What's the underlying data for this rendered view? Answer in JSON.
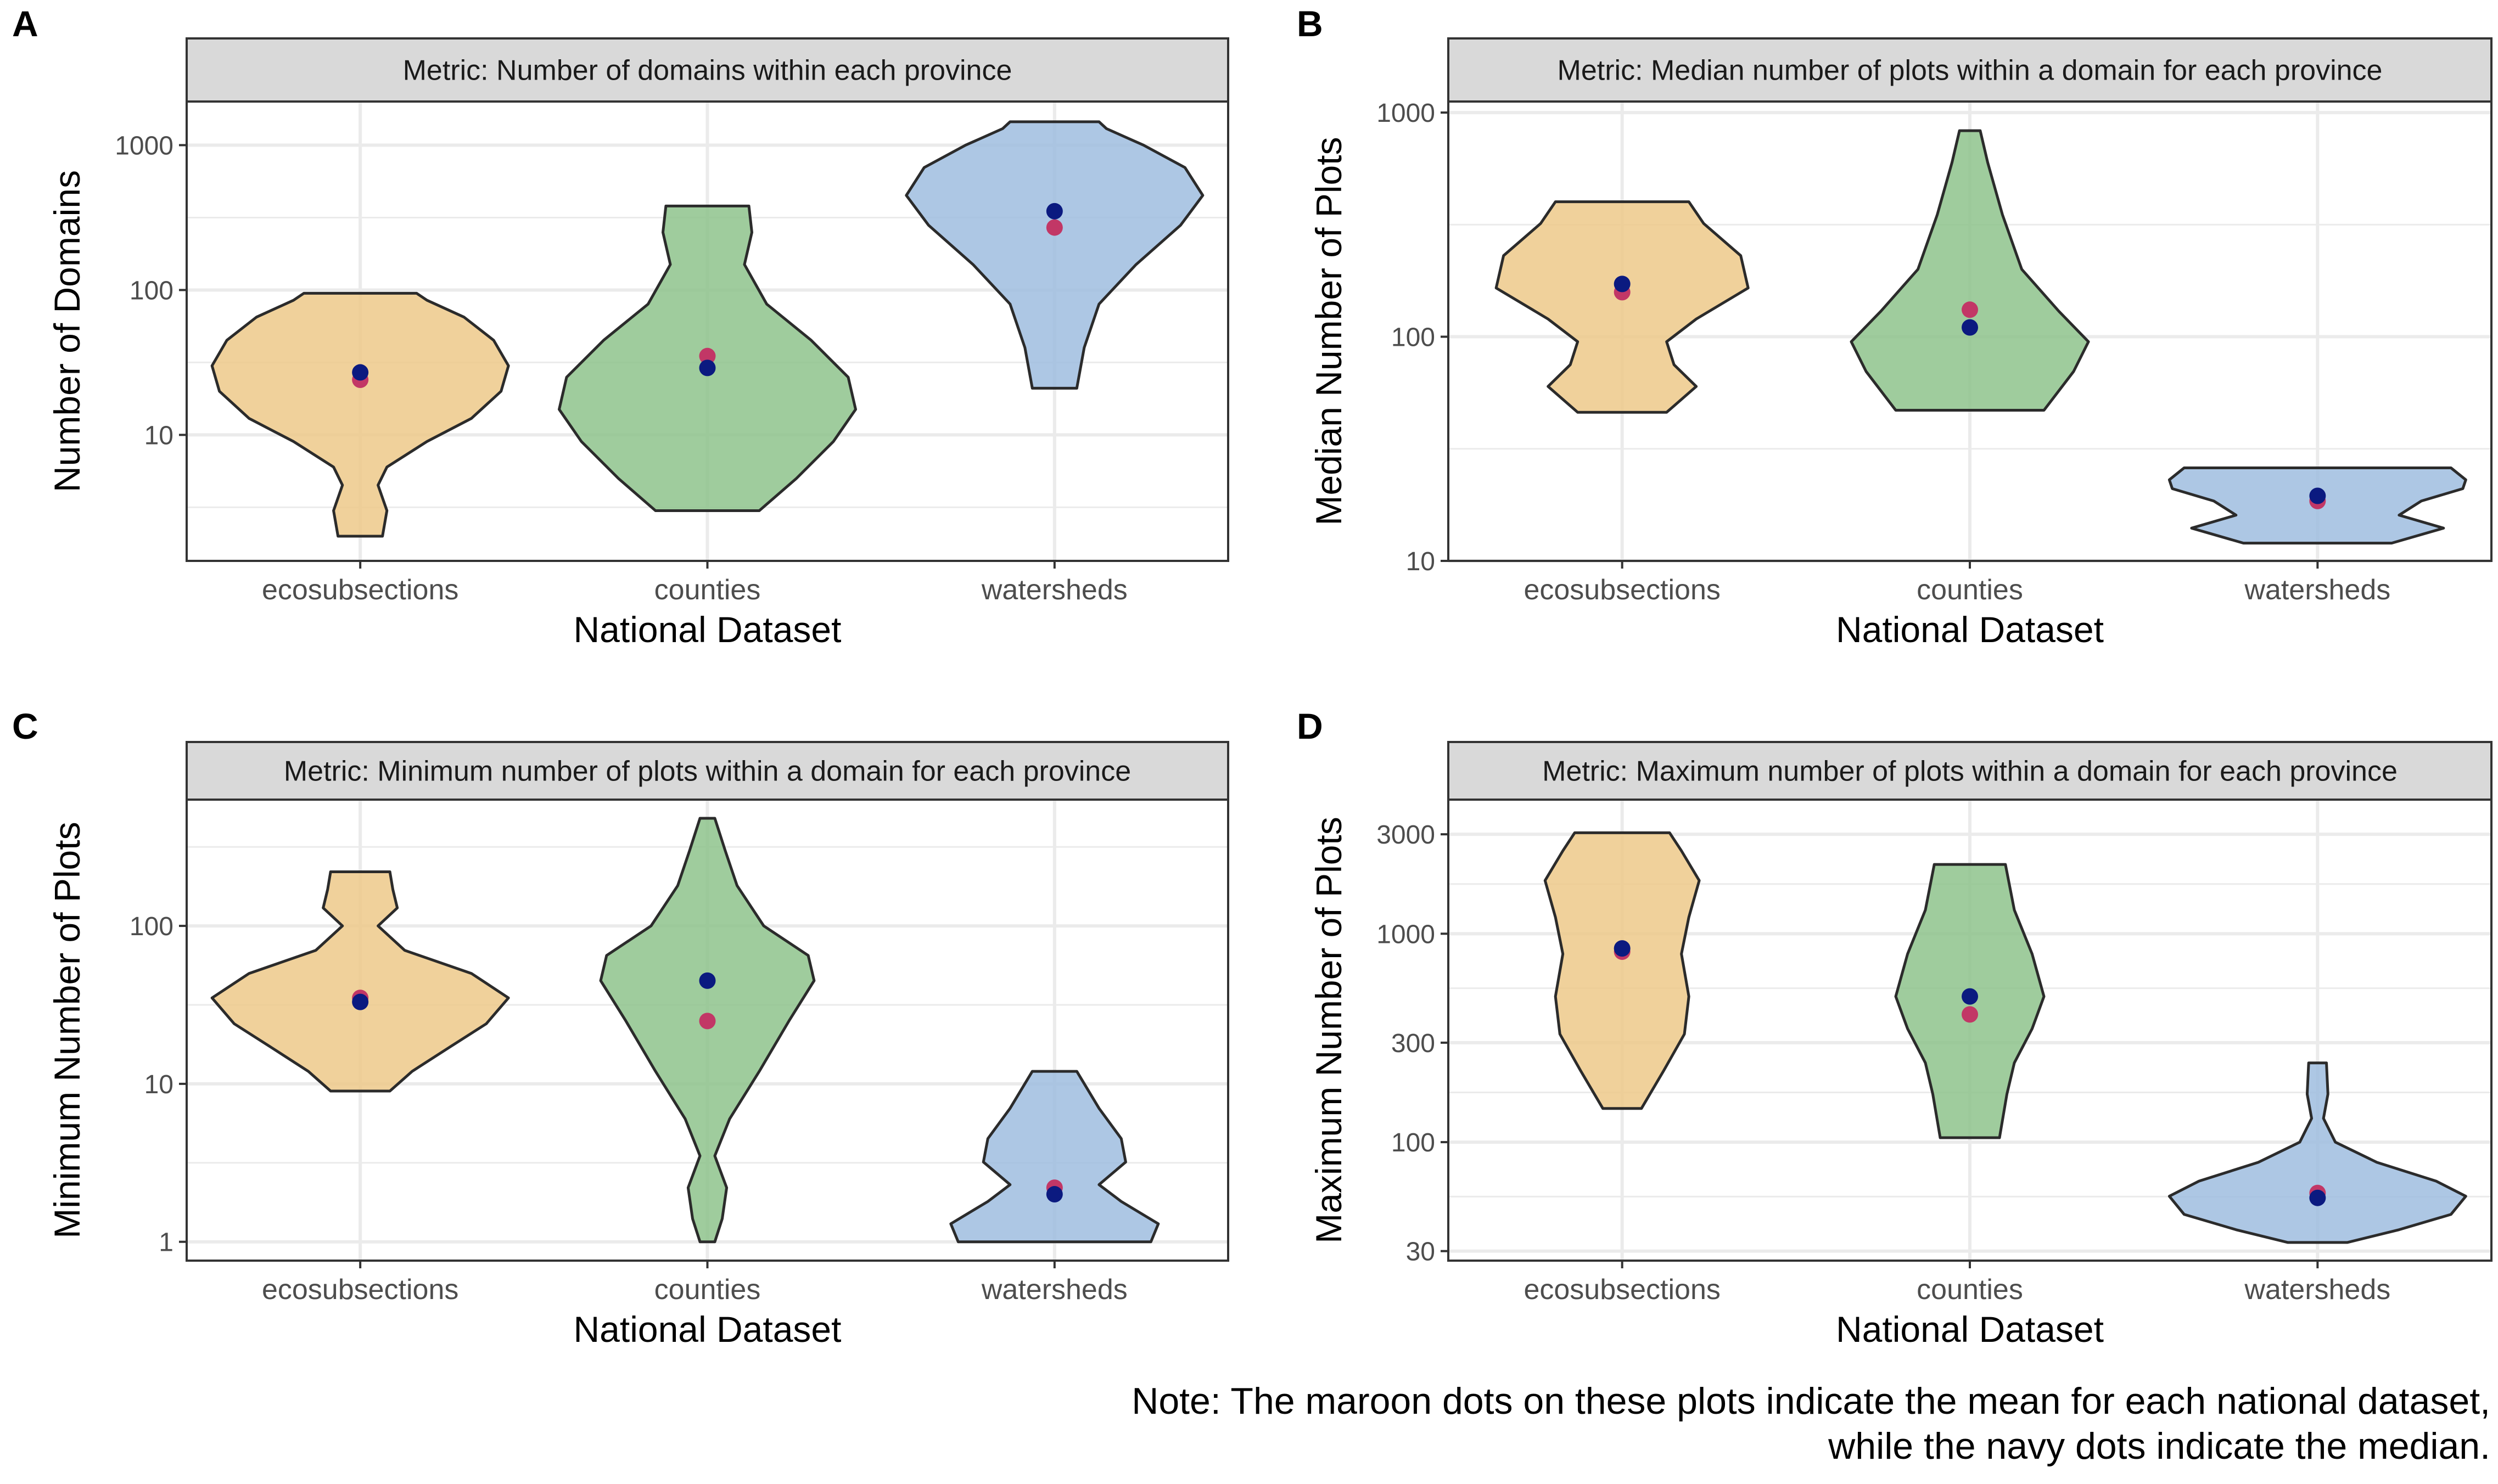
{
  "figure": {
    "note_line1": "Note: The maroon dots on these plots indicate the mean for each national dataset,",
    "note_line2": "while the navy dots indicate the median.",
    "colors": {
      "ecosubsections": "#EDC98A",
      "counties": "#8EC38C",
      "watersheds": "#9FBDDF",
      "mean_dot": "#C23766",
      "median_dot": "#0B1A80",
      "strip_bg": "#D9D9D9",
      "grid": "#EBEBEB"
    }
  },
  "chart_data": [
    {
      "type": "violin",
      "panel_letter": "A",
      "strip_title": "Metric: Number of domains within each province",
      "xlabel": "National Dataset",
      "ylabel": "Number of Domains",
      "yscale": "log10",
      "ylim": [
        1.35,
        2000
      ],
      "yticks": [
        10,
        100,
        1000
      ],
      "ytick_labels": [
        "10",
        "100",
        "1000"
      ],
      "categories": [
        "ecosubsections",
        "counties",
        "watersheds"
      ],
      "series": [
        {
          "name": "ecosubsections",
          "min": 2,
          "max": 95,
          "mean": 24,
          "median": 27,
          "profile": [
            [
              2,
              0.15
            ],
            [
              3,
              0.18
            ],
            [
              4.5,
              0.12
            ],
            [
              6,
              0.18
            ],
            [
              9,
              0.45
            ],
            [
              13,
              0.75
            ],
            [
              20,
              0.95
            ],
            [
              30,
              1.0
            ],
            [
              45,
              0.9
            ],
            [
              65,
              0.7
            ],
            [
              85,
              0.45
            ],
            [
              95,
              0.38
            ]
          ]
        },
        {
          "name": "counties",
          "min": 3,
          "max": 380,
          "mean": 35,
          "median": 29,
          "profile": [
            [
              3,
              0.35
            ],
            [
              5,
              0.6
            ],
            [
              9,
              0.85
            ],
            [
              15,
              1.0
            ],
            [
              25,
              0.95
            ],
            [
              45,
              0.7
            ],
            [
              80,
              0.4
            ],
            [
              150,
              0.25
            ],
            [
              250,
              0.3
            ],
            [
              380,
              0.28
            ]
          ]
        },
        {
          "name": "watersheds",
          "min": 21,
          "max": 1450,
          "mean": 270,
          "median": 350,
          "profile": [
            [
              21,
              0.15
            ],
            [
              40,
              0.2
            ],
            [
              80,
              0.3
            ],
            [
              150,
              0.55
            ],
            [
              280,
              0.85
            ],
            [
              450,
              1.0
            ],
            [
              700,
              0.88
            ],
            [
              1000,
              0.6
            ],
            [
              1300,
              0.35
            ],
            [
              1450,
              0.3
            ]
          ]
        }
      ]
    },
    {
      "type": "violin",
      "panel_letter": "B",
      "strip_title": "Metric: Median number of plots within a domain for each province",
      "xlabel": "National Dataset",
      "ylabel": "Median Number of Plots",
      "yscale": "log10",
      "ylim": [
        10,
        1120
      ],
      "yticks": [
        10,
        100,
        1000
      ],
      "ytick_labels": [
        "10",
        "100",
        "1000"
      ],
      "categories": [
        "ecosubsections",
        "counties",
        "watersheds"
      ],
      "series": [
        {
          "name": "ecosubsections",
          "min": 46,
          "max": 400,
          "mean": 158,
          "median": 172,
          "profile": [
            [
              46,
              0.3
            ],
            [
              60,
              0.5
            ],
            [
              75,
              0.35
            ],
            [
              95,
              0.3
            ],
            [
              120,
              0.5
            ],
            [
              165,
              0.85
            ],
            [
              230,
              0.8
            ],
            [
              320,
              0.55
            ],
            [
              400,
              0.45
            ]
          ]
        },
        {
          "name": "counties",
          "min": 47,
          "max": 830,
          "mean": 132,
          "median": 110,
          "profile": [
            [
              47,
              0.5
            ],
            [
              70,
              0.7
            ],
            [
              95,
              0.8
            ],
            [
              130,
              0.6
            ],
            [
              200,
              0.35
            ],
            [
              350,
              0.22
            ],
            [
              600,
              0.12
            ],
            [
              830,
              0.07
            ]
          ]
        },
        {
          "name": "watersheds",
          "min": 12,
          "max": 26,
          "mean": 18.5,
          "median": 19.5,
          "profile": [
            [
              12,
              0.5
            ],
            [
              14,
              0.85
            ],
            [
              16,
              0.55
            ],
            [
              18.5,
              0.7
            ],
            [
              21,
              0.98
            ],
            [
              23,
              1.0
            ],
            [
              26,
              0.9
            ]
          ]
        }
      ]
    },
    {
      "type": "violin",
      "panel_letter": "C",
      "strip_title": "Metric: Minimum number of plots within a domain for each province",
      "xlabel": "National Dataset",
      "ylabel": "Minimum Number of Plots",
      "yscale": "log10",
      "ylim": [
        0.76,
        630
      ],
      "yticks": [
        1,
        10,
        100
      ],
      "ytick_labels": [
        "1",
        "10",
        "100"
      ],
      "categories": [
        "ecosubsections",
        "counties",
        "watersheds"
      ],
      "series": [
        {
          "name": "ecosubsections",
          "min": 9,
          "max": 220,
          "mean": 35,
          "median": 33,
          "profile": [
            [
              9,
              0.2
            ],
            [
              12,
              0.35
            ],
            [
              17,
              0.6
            ],
            [
              24,
              0.85
            ],
            [
              35,
              1.0
            ],
            [
              50,
              0.75
            ],
            [
              70,
              0.3
            ],
            [
              100,
              0.12
            ],
            [
              130,
              0.25
            ],
            [
              170,
              0.22
            ],
            [
              220,
              0.2
            ]
          ]
        },
        {
          "name": "counties",
          "min": 1,
          "max": 480,
          "mean": 25,
          "median": 45,
          "profile": [
            [
              1,
              0.05
            ],
            [
              1.4,
              0.1
            ],
            [
              2.2,
              0.13
            ],
            [
              3.5,
              0.05
            ],
            [
              6,
              0.15
            ],
            [
              12,
              0.35
            ],
            [
              25,
              0.55
            ],
            [
              45,
              0.72
            ],
            [
              65,
              0.68
            ],
            [
              100,
              0.38
            ],
            [
              180,
              0.2
            ],
            [
              300,
              0.12
            ],
            [
              480,
              0.05
            ]
          ]
        },
        {
          "name": "watersheds",
          "min": 1,
          "max": 12,
          "mean": 2.2,
          "median": 2,
          "profile": [
            [
              1,
              0.65
            ],
            [
              1.3,
              0.7
            ],
            [
              1.8,
              0.45
            ],
            [
              2.3,
              0.3
            ],
            [
              3.2,
              0.48
            ],
            [
              4.5,
              0.45
            ],
            [
              7,
              0.3
            ],
            [
              12,
              0.15
            ]
          ]
        }
      ]
    },
    {
      "type": "violin",
      "panel_letter": "D",
      "strip_title": "Metric: Maximum number of plots within a domain for each province",
      "xlabel": "National Dataset",
      "ylabel": "Maximum Number of Plots",
      "yscale": "log10",
      "ylim": [
        27,
        4400
      ],
      "yticks": [
        30,
        100,
        300,
        1000,
        3000
      ],
      "ytick_labels": [
        "30",
        "100",
        "300",
        "1000",
        "3000"
      ],
      "categories": [
        "ecosubsections",
        "counties",
        "watersheds"
      ],
      "series": [
        {
          "name": "ecosubsections",
          "min": 145,
          "max": 3050,
          "mean": 820,
          "median": 850,
          "profile": [
            [
              145,
              0.13
            ],
            [
              220,
              0.28
            ],
            [
              330,
              0.42
            ],
            [
              500,
              0.45
            ],
            [
              800,
              0.4
            ],
            [
              1200,
              0.45
            ],
            [
              1800,
              0.52
            ],
            [
              2500,
              0.4
            ],
            [
              3050,
              0.32
            ]
          ]
        },
        {
          "name": "counties",
          "min": 105,
          "max": 2150,
          "mean": 410,
          "median": 500,
          "profile": [
            [
              105,
              0.2
            ],
            [
              170,
              0.25
            ],
            [
              240,
              0.3
            ],
            [
              350,
              0.42
            ],
            [
              500,
              0.5
            ],
            [
              800,
              0.42
            ],
            [
              1300,
              0.3
            ],
            [
              2150,
              0.24
            ]
          ]
        },
        {
          "name": "watersheds",
          "min": 33,
          "max": 240,
          "mean": 57,
          "median": 54,
          "profile": [
            [
              33,
              0.2
            ],
            [
              38,
              0.55
            ],
            [
              45,
              0.9
            ],
            [
              55,
              1.0
            ],
            [
              65,
              0.8
            ],
            [
              80,
              0.4
            ],
            [
              100,
              0.12
            ],
            [
              130,
              0.04
            ],
            [
              170,
              0.07
            ],
            [
              240,
              0.06
            ]
          ]
        }
      ]
    }
  ]
}
